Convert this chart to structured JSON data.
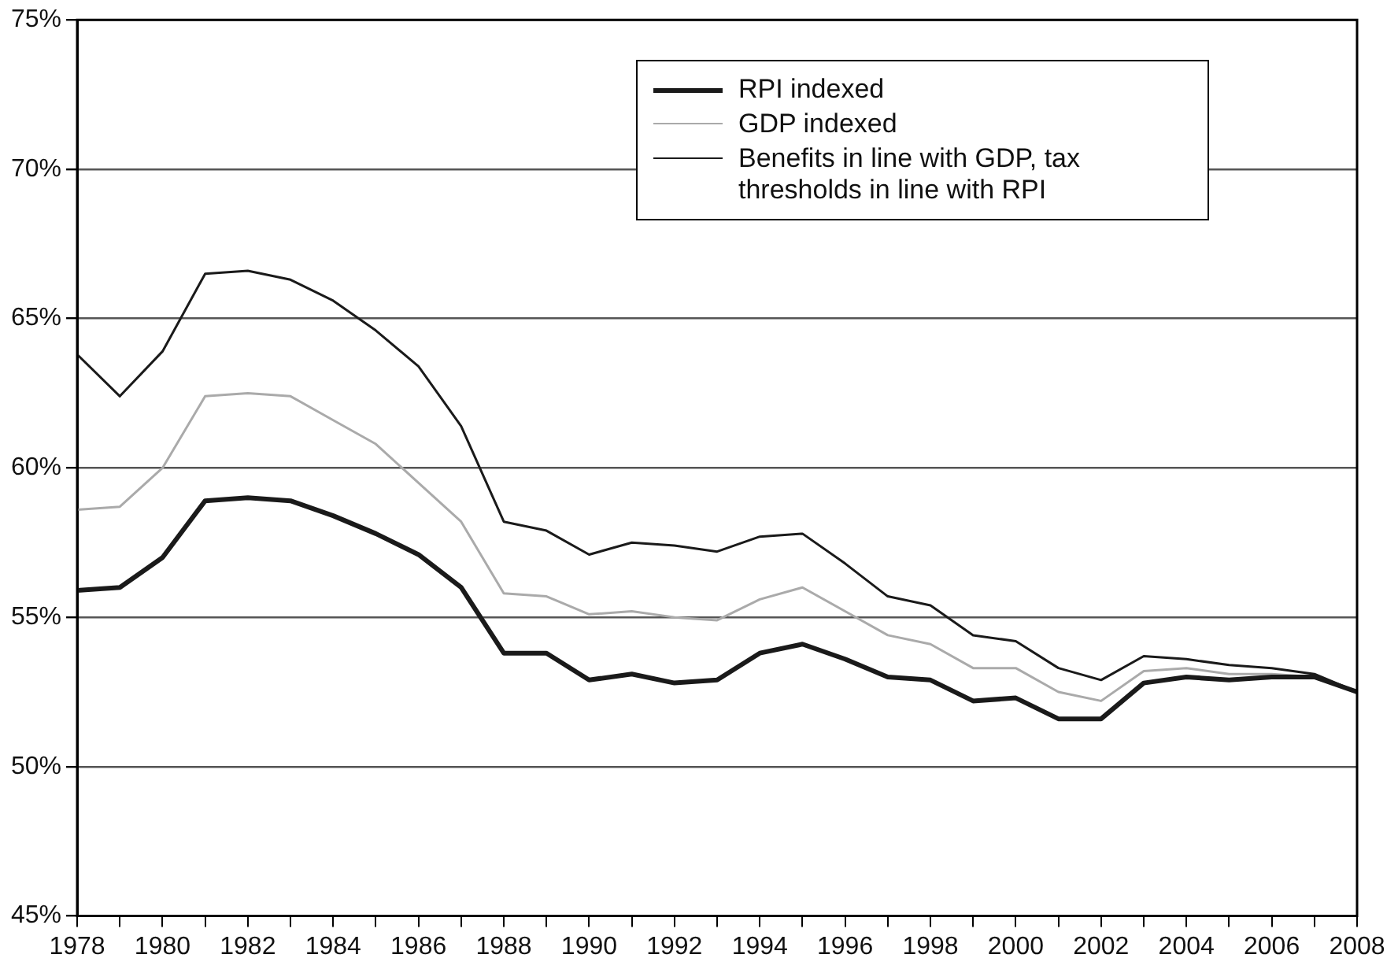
{
  "chart_data": {
    "type": "line",
    "x": [
      1978,
      1979,
      1980,
      1981,
      1982,
      1983,
      1984,
      1985,
      1986,
      1987,
      1988,
      1989,
      1990,
      1991,
      1992,
      1993,
      1994,
      1995,
      1996,
      1997,
      1998,
      1999,
      2000,
      2001,
      2002,
      2003,
      2004,
      2005,
      2006,
      2007,
      2008
    ],
    "series": [
      {
        "name": "RPI indexed",
        "color": "#1a1a1a",
        "values": [
          55.9,
          56.0,
          57.0,
          58.9,
          59.0,
          58.9,
          58.4,
          57.8,
          57.1,
          56.0,
          53.8,
          53.8,
          52.9,
          53.1,
          52.8,
          52.9,
          53.8,
          54.1,
          53.6,
          53.0,
          52.9,
          52.2,
          52.3,
          51.6,
          51.6,
          52.8,
          53.0,
          52.9,
          53.0,
          53.0,
          52.5
        ]
      },
      {
        "name": "GDP indexed",
        "color": "#aaaaaa",
        "values": [
          58.6,
          58.7,
          60.0,
          62.4,
          62.5,
          62.4,
          61.6,
          60.8,
          59.5,
          58.2,
          55.8,
          55.7,
          55.1,
          55.2,
          55.0,
          54.9,
          55.6,
          56.0,
          55.2,
          54.4,
          54.1,
          53.3,
          53.3,
          52.5,
          52.2,
          53.2,
          53.3,
          53.1,
          53.1,
          53.0,
          52.5
        ]
      },
      {
        "name": "Benefits in line with GDP, tax thresholds in line with RPI",
        "color": "#1a1a1a",
        "values": [
          63.8,
          62.4,
          63.9,
          66.5,
          66.6,
          66.3,
          65.6,
          64.6,
          63.4,
          61.4,
          58.2,
          57.9,
          57.1,
          57.5,
          57.4,
          57.2,
          57.7,
          57.8,
          56.8,
          55.7,
          55.4,
          54.4,
          54.2,
          53.3,
          52.9,
          53.7,
          53.6,
          53.4,
          53.3,
          53.1,
          52.5
        ]
      }
    ],
    "xlim": [
      1978,
      2008
    ],
    "xticks": [
      1978,
      {
        "value": 1979,
        "label": null
      },
      1980,
      {
        "value": 1981,
        "label": null
      },
      1982,
      {
        "value": 1983,
        "label": null
      },
      1984,
      {
        "value": 1985,
        "label": null
      },
      1986,
      {
        "value": 1987,
        "label": null
      },
      1988,
      {
        "value": 1989,
        "label": null
      },
      1990,
      {
        "value": 1991,
        "label": null
      },
      1992,
      {
        "value": 1993,
        "label": null
      },
      1994,
      {
        "value": 1995,
        "label": null
      },
      1996,
      {
        "value": 1997,
        "label": null
      },
      1998,
      {
        "value": 1999,
        "label": null
      },
      2000,
      {
        "value": 2001,
        "label": null
      },
      2002,
      {
        "value": 2003,
        "label": null
      },
      2004,
      {
        "value": 2005,
        "label": null
      },
      2006,
      {
        "value": 2007,
        "label": null
      },
      2008
    ],
    "ylim": [
      45,
      75
    ],
    "yticks": [
      {
        "value": 45,
        "label": "45%"
      },
      {
        "value": 50,
        "label": "50%"
      },
      {
        "value": 55,
        "label": "55%"
      },
      {
        "value": 60,
        "label": "60%"
      },
      {
        "value": 65,
        "label": "65%"
      },
      {
        "value": 70,
        "label": "70%"
      },
      {
        "value": 75,
        "label": "75%"
      }
    ],
    "grid": "y",
    "legend": "top right",
    "marker": "none",
    "line_style": "solid"
  }
}
